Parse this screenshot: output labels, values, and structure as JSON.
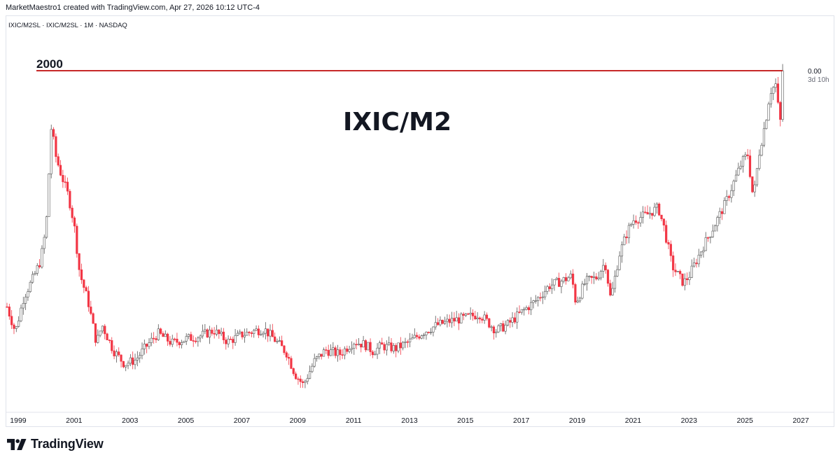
{
  "header": {
    "credit": "MarketMaestro1 created with TradingView.com, Apr 27, 2026 10:12 UTC-4",
    "symbol_line": "IXIC/M2SL · IXIC/M2SL · 1M · NASDAQ"
  },
  "footer": {
    "brand": "TradingView",
    "brand_icon": "tradingview-logo-icon"
  },
  "colors": {
    "up": "#555555",
    "down": "#f23645",
    "level_line": "#c62828",
    "text": "#131722",
    "axis": "#e0e3eb"
  },
  "chart_data": {
    "type": "candlestick",
    "title": "IXIC/M2",
    "interval": "1M",
    "x_ticks": [
      "1999",
      "2001",
      "2003",
      "2005",
      "2007",
      "2009",
      "2011",
      "2013",
      "2015",
      "2017",
      "2019",
      "2021",
      "2023",
      "2025",
      "2027"
    ],
    "x_range": [
      1998.6,
      2027.1
    ],
    "y_relative_range": [
      -2.2,
      0.1
    ],
    "horizontal_line": {
      "label": "2000",
      "y": 0
    },
    "price_label": {
      "value": "0.00",
      "countdown": "3d 10h"
    },
    "anchors": [
      [
        1998.6,
        -1.69
      ],
      [
        1998.9,
        -1.87
      ],
      [
        1999.2,
        -1.62
      ],
      [
        1999.5,
        -1.5
      ],
      [
        1999.8,
        -1.36
      ],
      [
        2000.0,
        -1.12
      ],
      [
        2000.2,
        -0.35
      ],
      [
        2000.3,
        -0.58
      ],
      [
        2000.5,
        -0.72
      ],
      [
        2000.8,
        -0.9
      ],
      [
        2001.0,
        -1.1
      ],
      [
        2001.2,
        -1.45
      ],
      [
        2001.5,
        -1.65
      ],
      [
        2001.8,
        -1.95
      ],
      [
        2002.0,
        -1.82
      ],
      [
        2002.4,
        -2.0
      ],
      [
        2002.8,
        -2.1
      ],
      [
        2003.2,
        -2.07
      ],
      [
        2003.6,
        -1.97
      ],
      [
        2004.0,
        -1.88
      ],
      [
        2004.5,
        -1.95
      ],
      [
        2005.0,
        -1.92
      ],
      [
        2005.5,
        -1.9
      ],
      [
        2006.0,
        -1.86
      ],
      [
        2006.5,
        -1.94
      ],
      [
        2007.0,
        -1.89
      ],
      [
        2007.5,
        -1.86
      ],
      [
        2007.8,
        -1.85
      ],
      [
        2008.2,
        -1.93
      ],
      [
        2008.6,
        -2.02
      ],
      [
        2008.9,
        -2.17
      ],
      [
        2009.2,
        -2.25
      ],
      [
        2009.6,
        -2.08
      ],
      [
        2010.0,
        -2.0
      ],
      [
        2010.5,
        -2.03
      ],
      [
        2011.0,
        -1.94
      ],
      [
        2011.4,
        -1.96
      ],
      [
        2011.7,
        -2.01
      ],
      [
        2012.0,
        -1.97
      ],
      [
        2012.5,
        -1.99
      ],
      [
        2013.0,
        -1.94
      ],
      [
        2013.5,
        -1.87
      ],
      [
        2014.0,
        -1.82
      ],
      [
        2014.5,
        -1.79
      ],
      [
        2015.0,
        -1.77
      ],
      [
        2015.5,
        -1.74
      ],
      [
        2015.8,
        -1.8
      ],
      [
        2016.1,
        -1.86
      ],
      [
        2016.5,
        -1.82
      ],
      [
        2017.0,
        -1.73
      ],
      [
        2017.5,
        -1.65
      ],
      [
        2018.0,
        -1.54
      ],
      [
        2018.5,
        -1.5
      ],
      [
        2018.8,
        -1.47
      ],
      [
        2018.95,
        -1.66
      ],
      [
        2019.3,
        -1.51
      ],
      [
        2019.7,
        -1.48
      ],
      [
        2020.0,
        -1.37
      ],
      [
        2020.2,
        -1.64
      ],
      [
        2020.5,
        -1.32
      ],
      [
        2020.8,
        -1.15
      ],
      [
        2021.0,
        -1.07
      ],
      [
        2021.5,
        -1.03
      ],
      [
        2021.9,
        -0.98
      ],
      [
        2022.1,
        -1.12
      ],
      [
        2022.4,
        -1.4
      ],
      [
        2022.8,
        -1.52
      ],
      [
        2023.0,
        -1.47
      ],
      [
        2023.5,
        -1.26
      ],
      [
        2023.8,
        -1.15
      ],
      [
        2024.0,
        -1.07
      ],
      [
        2024.3,
        -0.95
      ],
      [
        2024.6,
        -0.8
      ],
      [
        2024.9,
        -0.65
      ],
      [
        2025.1,
        -0.6
      ],
      [
        2025.3,
        -0.92
      ],
      [
        2025.5,
        -0.6
      ],
      [
        2025.75,
        -0.35
      ],
      [
        2025.9,
        -0.15
      ],
      [
        2026.1,
        -0.1
      ],
      [
        2026.2,
        -0.28
      ],
      [
        2026.3,
        -0.4
      ],
      [
        2026.35,
        0.0
      ]
    ]
  }
}
